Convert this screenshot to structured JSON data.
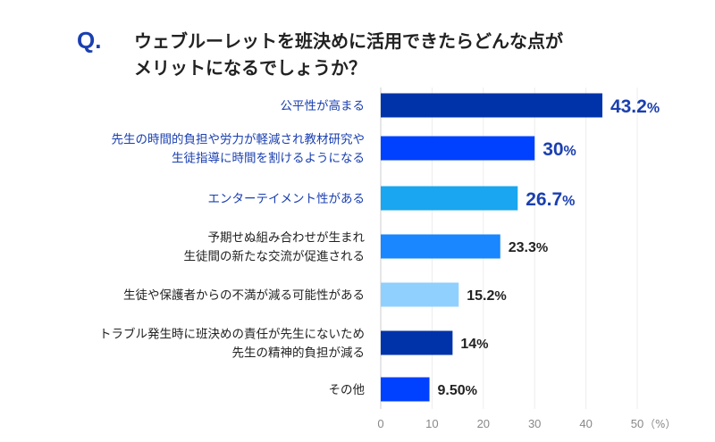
{
  "chart_data": {
    "type": "bar",
    "orientation": "horizontal",
    "question_marker": "Q.",
    "title_lines": [
      "ウェブルーレットを班決めに活用できたらどんな点が",
      "メリットになるでしょうか？"
    ],
    "categories": [
      [
        "公平性が高まる"
      ],
      [
        "先生の時間的負担や労力が軽減され教材研究や",
        "生徒指導に時間を割けるようになる"
      ],
      [
        "エンターテイメント性がある"
      ],
      [
        "予期せぬ組み合わせが生まれ",
        "生徒間の新たな交流が促進される"
      ],
      [
        "生徒や保護者からの不満が減る可能性がある"
      ],
      [
        "トラブル発生時に班決めの責任が先生にないため",
        "先生の精神的負担が減る"
      ],
      [
        "その他"
      ]
    ],
    "values": [
      43.2,
      30,
      26.7,
      23.3,
      15.2,
      14,
      9.5
    ],
    "value_labels": [
      "43.2",
      "30",
      "26.7",
      "23.3",
      "15.2",
      "14",
      "9.50"
    ],
    "unit_suffix": "%",
    "bar_colors": [
      "#0033aa",
      "#0040ff",
      "#1aa6f0",
      "#1a86ff",
      "#90d0ff",
      "#0033aa",
      "#0040ff"
    ],
    "highlight_count": 3,
    "highlight_color": "#1a3fb0",
    "text_color": "#222222",
    "xlim": [
      0,
      50
    ],
    "xticks": [
      "0",
      "10",
      "20",
      "30",
      "40",
      "50"
    ],
    "xunit": "（%）",
    "grid": true
  }
}
